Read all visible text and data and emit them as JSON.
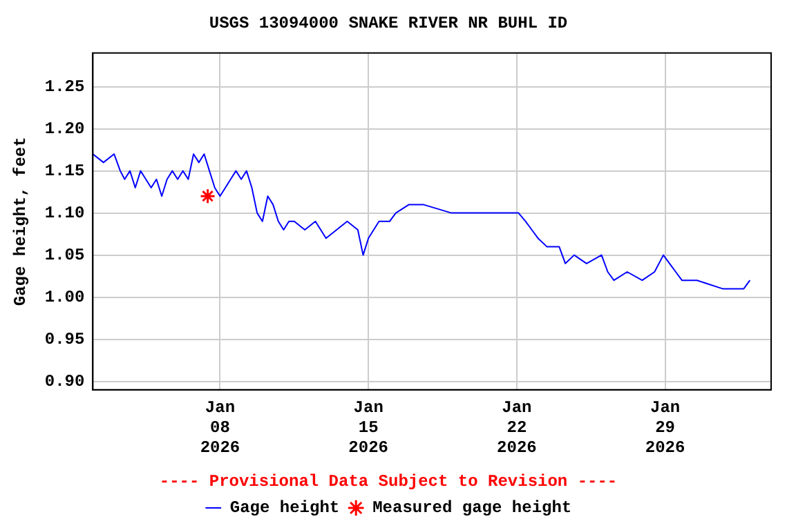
{
  "chart_data": {
    "type": "line",
    "title": "USGS 13094000 SNAKE RIVER NR BUHL ID",
    "ylabel": "Gage height, feet",
    "annotations": [
      "---- Provisional Data Subject to Revision ----"
    ],
    "xlim": [
      "2026-01-02",
      "2026-02-03"
    ],
    "xticks": [
      {
        "value": "2026-01-08",
        "label": "Jan 08 2026"
      },
      {
        "value": "2026-01-15",
        "label": "Jan 15 2026"
      },
      {
        "value": "2026-01-22",
        "label": "Jan 22 2026"
      },
      {
        "value": "2026-01-29",
        "label": "Jan 29 2026"
      }
    ],
    "ylim": [
      0.89,
      1.29
    ],
    "yticks": [
      {
        "value": 0.9,
        "label": "0.90"
      },
      0.95,
      {
        "value": 1.0,
        "label": "1.00"
      },
      1.05,
      {
        "value": 1.1,
        "label": "1.10"
      },
      1.15,
      {
        "value": 1.2,
        "label": "1.20"
      },
      1.25
    ],
    "grid": true,
    "legend": "bottom",
    "marker": "none",
    "line_style": "solid",
    "series": [
      {
        "name": "Gage height",
        "color": "#0000ff",
        "x": [
          "2026-01-02T00:00",
          "2026-01-02T12:00",
          "2026-01-03T00:00",
          "2026-01-03T07:00",
          "2026-01-03T12:00",
          "2026-01-03T18:00",
          "2026-01-04T00:00",
          "2026-01-04T06:00",
          "2026-01-04T12:00",
          "2026-01-04T18:00",
          "2026-01-05T00:00",
          "2026-01-05T06:00",
          "2026-01-05T12:00",
          "2026-01-05T18:00",
          "2026-01-06T00:00",
          "2026-01-06T06:00",
          "2026-01-06T12:00",
          "2026-01-06T18:00",
          "2026-01-07T00:00",
          "2026-01-07T06:00",
          "2026-01-07T12:00",
          "2026-01-07T18:00",
          "2026-01-08T00:00",
          "2026-01-08T06:00",
          "2026-01-08T12:00",
          "2026-01-08T18:00",
          "2026-01-09T00:00",
          "2026-01-09T06:00",
          "2026-01-09T12:00",
          "2026-01-09T18:00",
          "2026-01-10T00:00",
          "2026-01-10T06:00",
          "2026-01-10T12:00",
          "2026-01-10T18:00",
          "2026-01-11T00:00",
          "2026-01-11T06:00",
          "2026-01-11T12:00",
          "2026-01-12T00:00",
          "2026-01-12T12:00",
          "2026-01-13T00:00",
          "2026-01-13T12:00",
          "2026-01-14T00:00",
          "2026-01-14T12:00",
          "2026-01-14T18:00",
          "2026-01-15T00:00",
          "2026-01-15T12:00",
          "2026-01-16T00:00",
          "2026-01-16T07:00",
          "2026-01-16T22:00",
          "2026-01-17T14:00",
          "2026-01-18T22:00",
          "2026-01-20T05:00",
          "2026-01-21T10:00",
          "2026-01-22T02:00",
          "2026-01-22T10:00",
          "2026-01-22T17:00",
          "2026-01-23T00:00",
          "2026-01-23T10:00",
          "2026-01-24T00:00",
          "2026-01-24T07:00",
          "2026-01-24T17:00",
          "2026-01-25T07:00",
          "2026-01-26T00:00",
          "2026-01-26T07:00",
          "2026-01-26T14:00",
          "2026-01-27T05:00",
          "2026-01-27T22:00",
          "2026-01-28T12:00",
          "2026-01-28T22:00",
          "2026-01-29T05:00",
          "2026-01-29T12:00",
          "2026-01-29T19:00",
          "2026-01-30T12:00",
          "2026-01-31T17:00",
          "2026-02-01T17:00",
          "2026-02-02T00:00"
        ],
        "values": [
          1.17,
          1.16,
          1.17,
          1.15,
          1.14,
          1.15,
          1.13,
          1.15,
          1.14,
          1.13,
          1.14,
          1.12,
          1.14,
          1.15,
          1.14,
          1.15,
          1.14,
          1.17,
          1.16,
          1.17,
          1.15,
          1.13,
          1.12,
          1.13,
          1.14,
          1.15,
          1.14,
          1.15,
          1.13,
          1.1,
          1.09,
          1.12,
          1.11,
          1.09,
          1.08,
          1.09,
          1.09,
          1.08,
          1.09,
          1.07,
          1.08,
          1.09,
          1.08,
          1.05,
          1.07,
          1.09,
          1.09,
          1.1,
          1.11,
          1.11,
          1.1,
          1.1,
          1.1,
          1.1,
          1.09,
          1.08,
          1.07,
          1.06,
          1.06,
          1.04,
          1.05,
          1.04,
          1.05,
          1.03,
          1.02,
          1.03,
          1.02,
          1.03,
          1.05,
          1.04,
          1.03,
          1.02,
          1.02,
          1.01,
          1.01,
          1.02
        ]
      },
      {
        "name": "Measured gage height",
        "type": "scatter",
        "marker": "cross",
        "color": "#ff0000",
        "x": [
          "2026-01-07T10:00"
        ],
        "values": [
          1.12
        ]
      }
    ]
  }
}
